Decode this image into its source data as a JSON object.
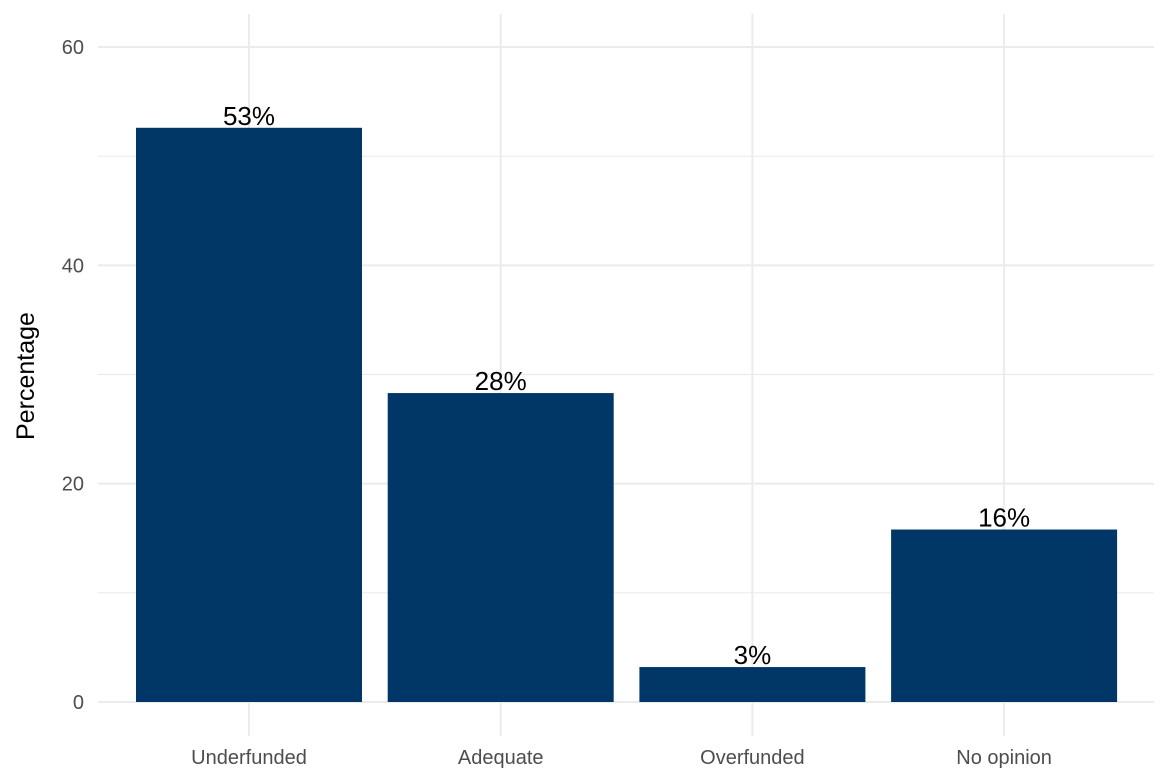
{
  "chart_data": {
    "type": "bar",
    "title": "",
    "xlabel": "",
    "ylabel": "Percentage",
    "categories": [
      "Underfunded",
      "Adequate",
      "Overfunded",
      "No opinion"
    ],
    "values": [
      52.6,
      28.3,
      3.2,
      15.8
    ],
    "data_labels": [
      "53%",
      "28%",
      "3%",
      "16%"
    ],
    "ylim": [
      0,
      60
    ],
    "yticks": [
      0,
      20,
      40,
      60
    ],
    "ytick_labels": [
      "0",
      "20",
      "40",
      "60"
    ],
    "grid": true,
    "legend": "none",
    "bar_color": "#003767",
    "grid_color": "#ebebeb"
  }
}
